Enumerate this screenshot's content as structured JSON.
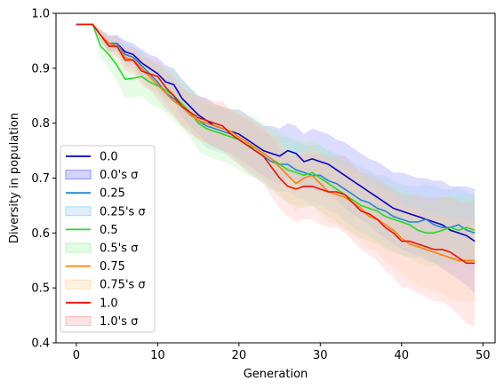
{
  "chart_data": {
    "type": "line",
    "xlabel": "Generation",
    "ylabel": "Diversity in population",
    "xlim": [
      -2.5,
      51.5
    ],
    "ylim": [
      0.4,
      1.0
    ],
    "xticks": [
      "0",
      "10",
      "20",
      "30",
      "40",
      "50"
    ],
    "yticks": [
      "0.4",
      "0.5",
      "0.6",
      "0.7",
      "0.8",
      "0.9",
      "1.0"
    ],
    "legend_position": "lower-left",
    "x": [
      0,
      1,
      2,
      3,
      4,
      5,
      6,
      7,
      8,
      9,
      10,
      11,
      12,
      13,
      14,
      15,
      16,
      17,
      18,
      19,
      20,
      21,
      22,
      23,
      24,
      25,
      26,
      27,
      28,
      29,
      30,
      31,
      32,
      33,
      34,
      35,
      36,
      37,
      38,
      39,
      40,
      41,
      42,
      43,
      44,
      45,
      46,
      47,
      48,
      49
    ],
    "series": [
      {
        "name": "0.0",
        "band_name": "0.0's σ",
        "color": "#0000cc",
        "band_color": "#8080ff",
        "values": [
          0.98,
          0.98,
          0.98,
          0.96,
          0.945,
          0.945,
          0.93,
          0.925,
          0.91,
          0.9,
          0.89,
          0.875,
          0.87,
          0.845,
          0.83,
          0.815,
          0.805,
          0.795,
          0.79,
          0.785,
          0.78,
          0.77,
          0.76,
          0.75,
          0.745,
          0.74,
          0.75,
          0.745,
          0.73,
          0.735,
          0.73,
          0.725,
          0.715,
          0.705,
          0.695,
          0.685,
          0.675,
          0.665,
          0.655,
          0.645,
          0.64,
          0.635,
          0.63,
          0.625,
          0.62,
          0.615,
          0.605,
          0.6,
          0.595,
          0.585
        ],
        "sigma": [
          0,
          0,
          0,
          0.01,
          0.015,
          0.015,
          0.02,
          0.02,
          0.025,
          0.025,
          0.03,
          0.03,
          0.03,
          0.035,
          0.035,
          0.035,
          0.04,
          0.04,
          0.04,
          0.04,
          0.045,
          0.045,
          0.045,
          0.045,
          0.05,
          0.05,
          0.05,
          0.05,
          0.05,
          0.055,
          0.055,
          0.055,
          0.055,
          0.06,
          0.06,
          0.06,
          0.06,
          0.065,
          0.065,
          0.065,
          0.07,
          0.07,
          0.07,
          0.075,
          0.075,
          0.08,
          0.08,
          0.085,
          0.09,
          0.095
        ]
      },
      {
        "name": "0.25",
        "band_name": "0.25's σ",
        "color": "#1f85d6",
        "band_color": "#9fd0f5",
        "values": [
          0.98,
          0.98,
          0.98,
          0.96,
          0.945,
          0.945,
          0.925,
          0.92,
          0.905,
          0.89,
          0.875,
          0.855,
          0.845,
          0.83,
          0.815,
          0.805,
          0.795,
          0.79,
          0.785,
          0.78,
          0.77,
          0.76,
          0.75,
          0.74,
          0.73,
          0.725,
          0.725,
          0.715,
          0.71,
          0.705,
          0.705,
          0.695,
          0.69,
          0.68,
          0.67,
          0.66,
          0.655,
          0.645,
          0.64,
          0.63,
          0.625,
          0.62,
          0.62,
          0.625,
          0.615,
          0.61,
          0.61,
          0.615,
          0.605,
          0.6
        ],
        "sigma": [
          0,
          0,
          0,
          0.01,
          0.015,
          0.015,
          0.02,
          0.02,
          0.025,
          0.025,
          0.03,
          0.03,
          0.03,
          0.035,
          0.035,
          0.035,
          0.04,
          0.04,
          0.04,
          0.04,
          0.045,
          0.045,
          0.045,
          0.045,
          0.05,
          0.05,
          0.05,
          0.05,
          0.05,
          0.055,
          0.055,
          0.055,
          0.055,
          0.06,
          0.06,
          0.06,
          0.06,
          0.06,
          0.065,
          0.065,
          0.065,
          0.065,
          0.065,
          0.065,
          0.07,
          0.07,
          0.07,
          0.07,
          0.07,
          0.07
        ]
      },
      {
        "name": "0.5",
        "band_name": "0.5's σ",
        "color": "#22dd22",
        "band_color": "#a8f5a8",
        "values": [
          0.98,
          0.98,
          0.98,
          0.94,
          0.925,
          0.905,
          0.88,
          0.882,
          0.885,
          0.875,
          0.868,
          0.86,
          0.85,
          0.835,
          0.82,
          0.8,
          0.79,
          0.785,
          0.78,
          0.775,
          0.77,
          0.76,
          0.755,
          0.745,
          0.735,
          0.725,
          0.715,
          0.71,
          0.705,
          0.71,
          0.7,
          0.69,
          0.68,
          0.67,
          0.66,
          0.65,
          0.645,
          0.64,
          0.63,
          0.625,
          0.62,
          0.615,
          0.605,
          0.6,
          0.6,
          0.605,
          0.61,
          0.605,
          0.61,
          0.605
        ],
        "sigma": [
          0,
          0,
          0,
          0.02,
          0.025,
          0.03,
          0.035,
          0.035,
          0.035,
          0.04,
          0.04,
          0.04,
          0.045,
          0.045,
          0.045,
          0.05,
          0.05,
          0.05,
          0.05,
          0.05,
          0.055,
          0.055,
          0.055,
          0.055,
          0.055,
          0.06,
          0.06,
          0.06,
          0.06,
          0.06,
          0.06,
          0.06,
          0.06,
          0.06,
          0.06,
          0.06,
          0.06,
          0.06,
          0.06,
          0.06,
          0.06,
          0.06,
          0.06,
          0.06,
          0.06,
          0.06,
          0.06,
          0.06,
          0.06,
          0.06
        ]
      },
      {
        "name": "0.75",
        "band_name": "0.75's σ",
        "color": "#ff8000",
        "band_color": "#ffd9a8",
        "values": [
          0.98,
          0.98,
          0.98,
          0.96,
          0.945,
          0.94,
          0.92,
          0.915,
          0.9,
          0.885,
          0.87,
          0.855,
          0.84,
          0.83,
          0.815,
          0.805,
          0.8,
          0.795,
          0.79,
          0.785,
          0.775,
          0.765,
          0.755,
          0.745,
          0.735,
          0.72,
          0.705,
          0.69,
          0.7,
          0.705,
          0.69,
          0.675,
          0.67,
          0.665,
          0.655,
          0.645,
          0.63,
          0.625,
          0.615,
          0.605,
          0.59,
          0.58,
          0.575,
          0.57,
          0.565,
          0.56,
          0.555,
          0.55,
          0.55,
          0.55
        ],
        "sigma": [
          0,
          0,
          0,
          0.01,
          0.015,
          0.015,
          0.02,
          0.02,
          0.025,
          0.025,
          0.03,
          0.03,
          0.03,
          0.035,
          0.035,
          0.035,
          0.04,
          0.04,
          0.04,
          0.04,
          0.045,
          0.045,
          0.045,
          0.045,
          0.05,
          0.05,
          0.05,
          0.05,
          0.05,
          0.055,
          0.055,
          0.055,
          0.055,
          0.06,
          0.06,
          0.06,
          0.06,
          0.06,
          0.065,
          0.065,
          0.065,
          0.065,
          0.07,
          0.07,
          0.07,
          0.07,
          0.075,
          0.075,
          0.075,
          0.075
        ]
      },
      {
        "name": "1.0",
        "band_name": "1.0's σ",
        "color": "#ee1100",
        "band_color": "#ffb0b0",
        "values": [
          0.98,
          0.98,
          0.98,
          0.96,
          0.94,
          0.94,
          0.915,
          0.915,
          0.895,
          0.89,
          0.885,
          0.865,
          0.85,
          0.83,
          0.82,
          0.81,
          0.805,
          0.8,
          0.795,
          0.78,
          0.77,
          0.76,
          0.75,
          0.74,
          0.72,
          0.7,
          0.685,
          0.68,
          0.685,
          0.685,
          0.68,
          0.675,
          0.675,
          0.67,
          0.655,
          0.64,
          0.635,
          0.625,
          0.61,
          0.6,
          0.585,
          0.585,
          0.58,
          0.575,
          0.57,
          0.57,
          0.565,
          0.555,
          0.545,
          0.545
        ],
        "sigma": [
          0,
          0,
          0,
          0.01,
          0.015,
          0.02,
          0.02,
          0.025,
          0.025,
          0.03,
          0.03,
          0.03,
          0.035,
          0.035,
          0.035,
          0.04,
          0.04,
          0.04,
          0.045,
          0.045,
          0.045,
          0.05,
          0.05,
          0.05,
          0.055,
          0.055,
          0.055,
          0.06,
          0.06,
          0.06,
          0.065,
          0.065,
          0.065,
          0.07,
          0.07,
          0.07,
          0.075,
          0.075,
          0.08,
          0.08,
          0.085,
          0.085,
          0.09,
          0.09,
          0.095,
          0.095,
          0.1,
          0.105,
          0.11,
          0.115
        ]
      }
    ]
  }
}
